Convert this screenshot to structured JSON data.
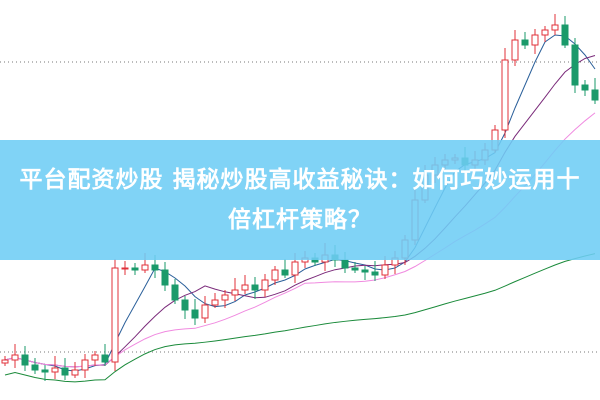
{
  "title": "平台配资炒股 揭秘炒股高收益秘诀：如何巧妙运用十倍杠杆策略？",
  "colors": {
    "up": "#e0303a",
    "down": "#1a9a6a",
    "ma5": "#2a5f9a",
    "ma10": "#7a2a7a",
    "ma20": "#f08ae0",
    "ma60": "#1a8a3a",
    "banner": "#6ecdf5"
  },
  "chart_data": {
    "type": "candlestick",
    "closes": [
      40,
      45,
      35,
      30,
      28,
      32,
      25,
      30,
      40,
      45,
      38,
      132,
      132,
      130,
      135,
      130,
      115,
      100,
      90,
      82,
      95,
      100,
      105,
      110,
      115,
      110,
      120,
      130,
      125,
      138,
      142,
      138,
      145,
      140,
      132,
      130,
      128,
      125,
      135,
      142,
      160,
      200,
      225,
      235,
      240,
      242,
      235,
      240,
      250,
      270,
      340,
      360,
      355,
      365,
      370,
      375,
      355,
      315,
      310,
      300
    ],
    "moving_averages": [
      5,
      10,
      20,
      60
    ]
  }
}
